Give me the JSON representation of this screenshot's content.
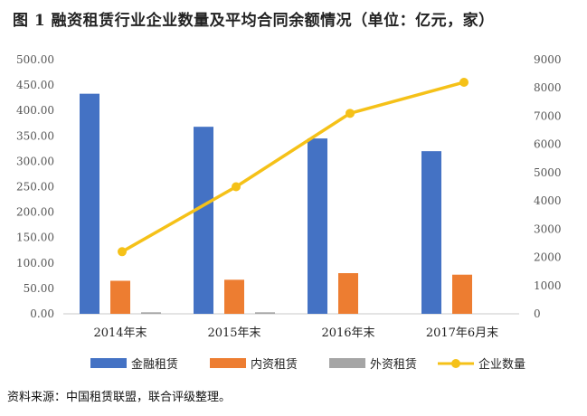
{
  "title": "图 1    融资租赁行业企业数量及平均合同余额情况（单位：亿元，家）",
  "source": "资料来源：中国租赁联盟，联合评级整理。",
  "chart_data": {
    "type": "bar",
    "categories": [
      "2014年末",
      "2015年末",
      "2016年末",
      "2017年6月末"
    ],
    "y_left": {
      "ticks": [
        "0.00",
        "50.00",
        "100.00",
        "150.00",
        "200.00",
        "250.00",
        "300.00",
        "350.00",
        "400.00",
        "450.00",
        "500.00"
      ],
      "range": [
        0,
        500
      ]
    },
    "y_right": {
      "ticks": [
        "0",
        "1000",
        "2000",
        "3000",
        "4000",
        "5000",
        "6000",
        "7000",
        "8000",
        "9000"
      ],
      "range": [
        0,
        9000
      ]
    },
    "series": [
      {
        "name": "金融租赁",
        "kind": "bar",
        "axis": "left",
        "color": "#4472C4",
        "values": [
          433,
          368,
          345,
          320
        ]
      },
      {
        "name": "内资租赁",
        "kind": "bar",
        "axis": "left",
        "color": "#ED7D31",
        "values": [
          65,
          67,
          80,
          77
        ]
      },
      {
        "name": "外资租赁",
        "kind": "bar",
        "axis": "left",
        "color": "#A5A5A5",
        "values": [
          3,
          3,
          0,
          0
        ]
      },
      {
        "name": "企业数量",
        "kind": "line",
        "axis": "right",
        "color": "#F5C118",
        "values": [
          2200,
          4500,
          7100,
          8200
        ]
      }
    ],
    "grid": false,
    "legend": "bottom"
  }
}
